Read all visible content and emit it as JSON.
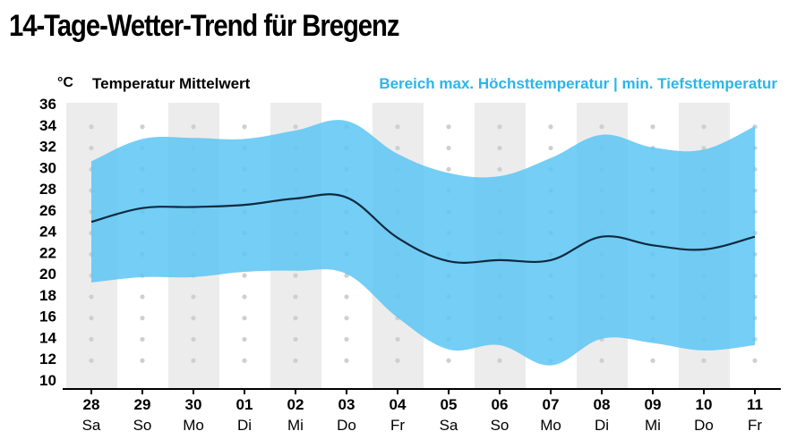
{
  "title": "14-Tage-Wetter-Trend für Bregenz",
  "unit_label": "°C",
  "mean_label": "Temperatur Mittelwert",
  "range_label": "Bereich max. Höchsttemperatur | min. Tiefsttemperatur",
  "colors": {
    "band": "#5cc6f4",
    "line": "#0e2a3f",
    "range_label": "#29b6ee",
    "column_shade": "#ececec",
    "dot": "#cfcfcf"
  },
  "chart_data": {
    "type": "area",
    "ylim": [
      10,
      36
    ],
    "yticks": [
      10,
      12,
      14,
      16,
      18,
      20,
      22,
      24,
      26,
      28,
      30,
      32,
      34,
      36
    ],
    "x_days": [
      "28",
      "29",
      "30",
      "01",
      "02",
      "03",
      "04",
      "05",
      "06",
      "07",
      "08",
      "09",
      "10",
      "11"
    ],
    "x_weekdays": [
      "Sa",
      "So",
      "Mo",
      "Di",
      "Mi",
      "Do",
      "Fr",
      "Sa",
      "So",
      "Mo",
      "Di",
      "Mi",
      "Do",
      "Fr"
    ],
    "series": [
      {
        "name": "Bereich max. Höchsttemperatur | min. Tiefsttemperatur",
        "type": "range",
        "max": [
          30.5,
          32.6,
          32.7,
          32.6,
          33.4,
          34.3,
          31.2,
          29.4,
          29.1,
          30.8,
          33.0,
          31.8,
          31.6,
          33.8
        ],
        "min": [
          19.1,
          19.6,
          19.6,
          20.1,
          20.2,
          19.9,
          15.8,
          12.8,
          13.2,
          11.3,
          13.8,
          13.4,
          12.7,
          13.2
        ]
      },
      {
        "name": "Temperatur Mittelwert",
        "type": "line",
        "values": [
          24.8,
          26.1,
          26.2,
          26.4,
          27.0,
          27.1,
          23.3,
          21.1,
          21.2,
          21.2,
          23.4,
          22.6,
          22.2,
          23.4
        ]
      }
    ]
  }
}
